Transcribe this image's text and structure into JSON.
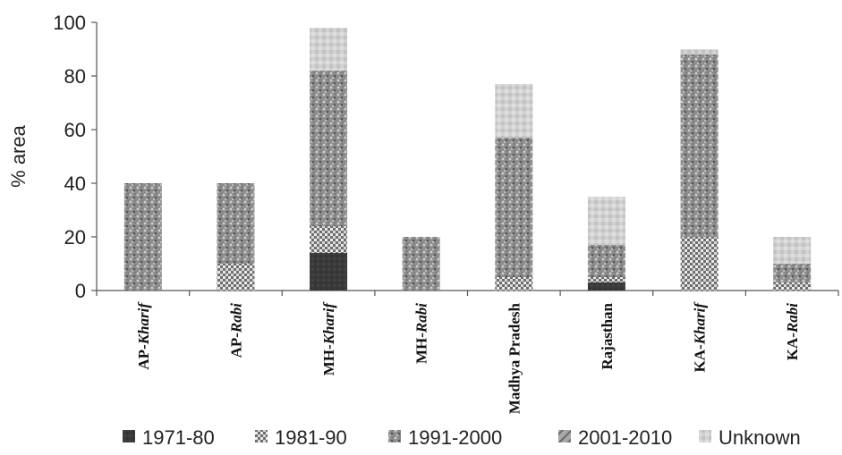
{
  "chart_data": {
    "type": "bar",
    "stacked": true,
    "ylabel": "% area",
    "xlabel": "",
    "title": "",
    "ylim": [
      0,
      100
    ],
    "yticks": [
      0,
      20,
      40,
      60,
      80,
      100
    ],
    "categories": [
      {
        "prefix": "AP-",
        "suffix": "Kharif",
        "suffix_italic": true
      },
      {
        "prefix": "AP-",
        "suffix": "Rabi",
        "suffix_italic": true
      },
      {
        "prefix": "MH-",
        "suffix": "Kharif",
        "suffix_italic": true
      },
      {
        "prefix": "MH-",
        "suffix": "Rabi",
        "suffix_italic": true
      },
      {
        "prefix": "Madhya Pradesh",
        "suffix": "",
        "suffix_italic": false
      },
      {
        "prefix": "Rajasthan",
        "suffix": "",
        "suffix_italic": false
      },
      {
        "prefix": "KA-",
        "suffix": "Kharif",
        "suffix_italic": true
      },
      {
        "prefix": "KA-",
        "suffix": "Rabi",
        "suffix_italic": true
      }
    ],
    "series": [
      {
        "name": "1971-80",
        "color": "#3a3a3a",
        "values": [
          0,
          0,
          14,
          0,
          0,
          3,
          0,
          0
        ]
      },
      {
        "name": "1981-90",
        "color": "#9a9a9a",
        "values": [
          0,
          10,
          10,
          0,
          5,
          2,
          20,
          3
        ]
      },
      {
        "name": "1991-2000",
        "color": "#8a8a8a",
        "values": [
          40,
          30,
          58,
          20,
          52,
          12,
          68,
          7
        ]
      },
      {
        "name": "2001-2010",
        "color": "#b4b4b4",
        "values": [
          0,
          0,
          0,
          0,
          0,
          0,
          0,
          0
        ]
      },
      {
        "name": "Unknown",
        "color": "#c8c8c8",
        "values": [
          0,
          0,
          16,
          0,
          20,
          18,
          2,
          10
        ]
      }
    ],
    "grid": false,
    "legend_position": "bottom"
  }
}
